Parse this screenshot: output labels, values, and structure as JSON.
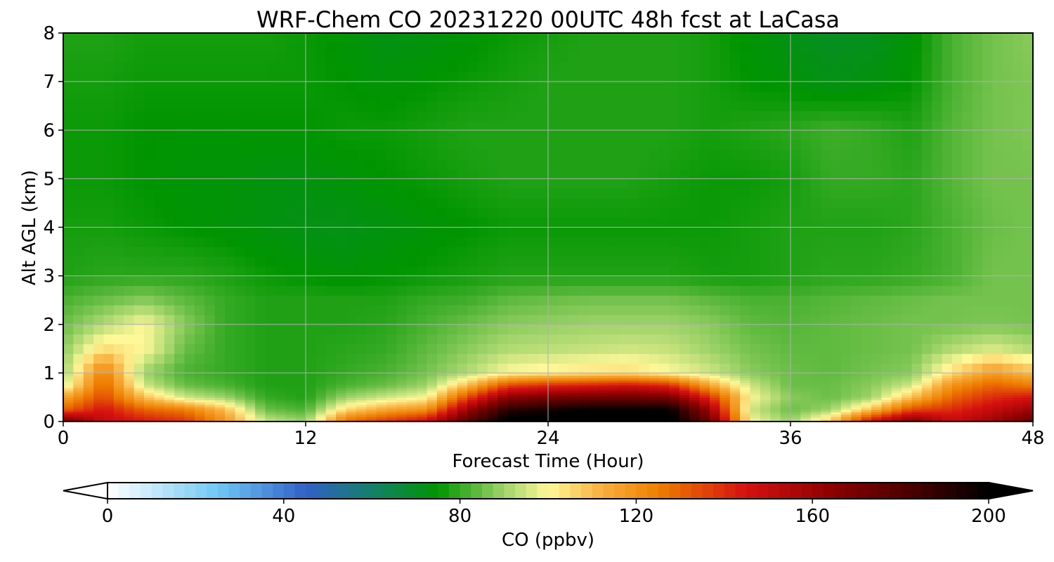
{
  "chart_data": {
    "type": "heatmap",
    "title": "WRF-Chem CO  20231220 00UTC 48h fcst at LaCasa",
    "xlabel": "Forecast Time (Hour)",
    "ylabel": "Alt AGL (km)",
    "xlim": [
      0,
      48
    ],
    "ylim": [
      0,
      8
    ],
    "xticks": [
      "0",
      "12",
      "24",
      "36",
      "48"
    ],
    "yticks": [
      "0",
      "1",
      "2",
      "3",
      "4",
      "5",
      "6",
      "7",
      "8"
    ],
    "grid": true,
    "x": [
      0,
      2,
      4,
      6,
      8,
      10,
      12,
      14,
      16,
      18,
      20,
      22,
      24,
      26,
      28,
      30,
      32,
      34,
      36,
      38,
      40,
      42,
      44,
      46,
      48
    ],
    "y": [
      0,
      0.25,
      0.5,
      0.75,
      1,
      1.5,
      2,
      2.5,
      3,
      4,
      5,
      6,
      7,
      8
    ],
    "z": [
      [
        175,
        150,
        145,
        140,
        120,
        95,
        90,
        130,
        140,
        150,
        180,
        205,
        205,
        205,
        205,
        205,
        175,
        100,
        90,
        110,
        150,
        170,
        150,
        160,
        175
      ],
      [
        130,
        145,
        130,
        125,
        110,
        85,
        82,
        105,
        115,
        120,
        160,
        190,
        195,
        200,
        200,
        200,
        160,
        95,
        85,
        90,
        110,
        135,
        140,
        150,
        160
      ],
      [
        115,
        135,
        110,
        95,
        90,
        80,
        78,
        90,
        95,
        100,
        135,
        165,
        170,
        172,
        172,
        170,
        140,
        100,
        88,
        85,
        90,
        110,
        130,
        140,
        145
      ],
      [
        95,
        130,
        95,
        85,
        82,
        78,
        78,
        82,
        85,
        90,
        110,
        135,
        140,
        142,
        145,
        140,
        115,
        95,
        85,
        85,
        88,
        95,
        120,
        130,
        125
      ],
      [
        90,
        125,
        90,
        82,
        80,
        78,
        78,
        80,
        82,
        86,
        92,
        100,
        102,
        104,
        105,
        100,
        95,
        88,
        85,
        84,
        86,
        88,
        105,
        118,
        110
      ],
      [
        88,
        105,
        100,
        85,
        80,
        78,
        78,
        79,
        80,
        84,
        88,
        92,
        93,
        94,
        95,
        94,
        90,
        86,
        84,
        84,
        85,
        86,
        92,
        96,
        92
      ],
      [
        85,
        92,
        100,
        88,
        80,
        78,
        78,
        78,
        79,
        82,
        85,
        88,
        89,
        90,
        90,
        90,
        88,
        84,
        83,
        84,
        85,
        86,
        86,
        87,
        86
      ],
      [
        82,
        85,
        88,
        84,
        80,
        78,
        78,
        78,
        78,
        80,
        81,
        84,
        85,
        86,
        86,
        86,
        84,
        82,
        82,
        83,
        84,
        85,
        86,
        86,
        86
      ],
      [
        78,
        79,
        79,
        79,
        78,
        76,
        75,
        74,
        75,
        76,
        77,
        78,
        78,
        78,
        78,
        78,
        77,
        77,
        78,
        79,
        79,
        80,
        82,
        86,
        86
      ],
      [
        77,
        77,
        76,
        75,
        74,
        73,
        72,
        72,
        73,
        74,
        75,
        76,
        76,
        76,
        76,
        76,
        76,
        77,
        78,
        78,
        78,
        79,
        82,
        85,
        86
      ],
      [
        76,
        76,
        75,
        74,
        74,
        73,
        73,
        74,
        75,
        76,
        77,
        78,
        78,
        78,
        78,
        77,
        76,
        76,
        77,
        80,
        80,
        79,
        83,
        86,
        86
      ],
      [
        76,
        76,
        75,
        75,
        75,
        75,
        75,
        76,
        76,
        77,
        78,
        78,
        78,
        78,
        78,
        78,
        77,
        78,
        79,
        81,
        80,
        78,
        83,
        86,
        87
      ],
      [
        77,
        77,
        76,
        76,
        76,
        76,
        76,
        75,
        74,
        75,
        76,
        77,
        78,
        78,
        78,
        78,
        77,
        75,
        74,
        72,
        73,
        75,
        82,
        86,
        87
      ],
      [
        78,
        78,
        77,
        77,
        77,
        77,
        76,
        74,
        72,
        73,
        74,
        76,
        77,
        78,
        78,
        78,
        77,
        74,
        72,
        70,
        71,
        74,
        82,
        86,
        88
      ]
    ],
    "colorbar": {
      "label": "CO  (ppbv)",
      "ticks": [
        "0",
        "40",
        "80",
        "120",
        "160",
        "200"
      ],
      "min": 0,
      "max": 200,
      "extend": "both"
    },
    "colormap": [
      [
        0,
        "#ffffff"
      ],
      [
        10,
        "#c7e9fb"
      ],
      [
        25,
        "#6fc8f5"
      ],
      [
        45,
        "#3160c8"
      ],
      [
        60,
        "#14806a"
      ],
      [
        75,
        "#009500"
      ],
      [
        90,
        "#9fd36a"
      ],
      [
        100,
        "#fff899"
      ],
      [
        112,
        "#f8b040"
      ],
      [
        125,
        "#ee7f00"
      ],
      [
        145,
        "#d51010"
      ],
      [
        165,
        "#8a0000"
      ],
      [
        185,
        "#400000"
      ],
      [
        200,
        "#000000"
      ]
    ]
  }
}
